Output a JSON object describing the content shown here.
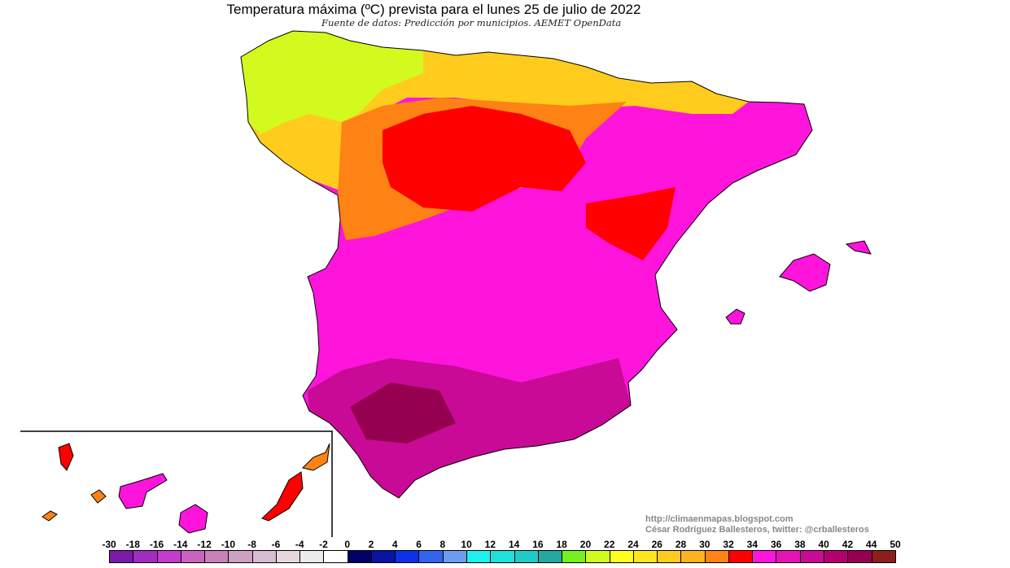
{
  "header": {
    "title": "Temperatura máxima (ºC) prevista para el lunes 25 de julio de 2022",
    "subtitle": "Fuente de datos: Predicción por municipios. AEMET OpenData"
  },
  "credits": {
    "url": "http://climaenmapas.blogspot.com",
    "author": "César Rodríguez Ballesteros, twitter: @crballesteros"
  },
  "legend": {
    "unit": "ºC",
    "labels": [
      "-30",
      "-18",
      "-16",
      "-14",
      "-12",
      "-10",
      "-8",
      "-6",
      "-4",
      "-2",
      "0",
      "2",
      "4",
      "6",
      "8",
      "10",
      "12",
      "14",
      "16",
      "18",
      "20",
      "22",
      "24",
      "26",
      "28",
      "30",
      "32",
      "34",
      "36",
      "38",
      "40",
      "42",
      "44",
      "50"
    ],
    "colors": [
      "#7a1aa8",
      "#a02cc0",
      "#c43ccc",
      "#c864c0",
      "#c882b8",
      "#d0a0c0",
      "#d8bcd0",
      "#e4d8de",
      "#ececec",
      "#ffffff",
      "#000066",
      "#0a14a0",
      "#0a32e6",
      "#3264f0",
      "#6e9cf0",
      "#1ef0f0",
      "#1ee1dc",
      "#20ccc8",
      "#22aaa0",
      "#78f01e",
      "#d2fa1e",
      "#ffff1e",
      "#ffe61e",
      "#ffcc1e",
      "#ffb41e",
      "#ff8214",
      "#ff0000",
      "#ff14dc",
      "#e614b4",
      "#c80a96",
      "#b4006e",
      "#960050",
      "#8c1e1e"
    ]
  },
  "map": {
    "region_colors": {
      "northwest_cool": "#d2fa1e",
      "north_coast": "#ffcc1e",
      "north_plateau": "#ff8214",
      "castilla_core": "#ff0000",
      "interior": "#ff14dc",
      "south": "#c80a96",
      "guadalquivir": "#960050",
      "borders": "#000000"
    }
  }
}
